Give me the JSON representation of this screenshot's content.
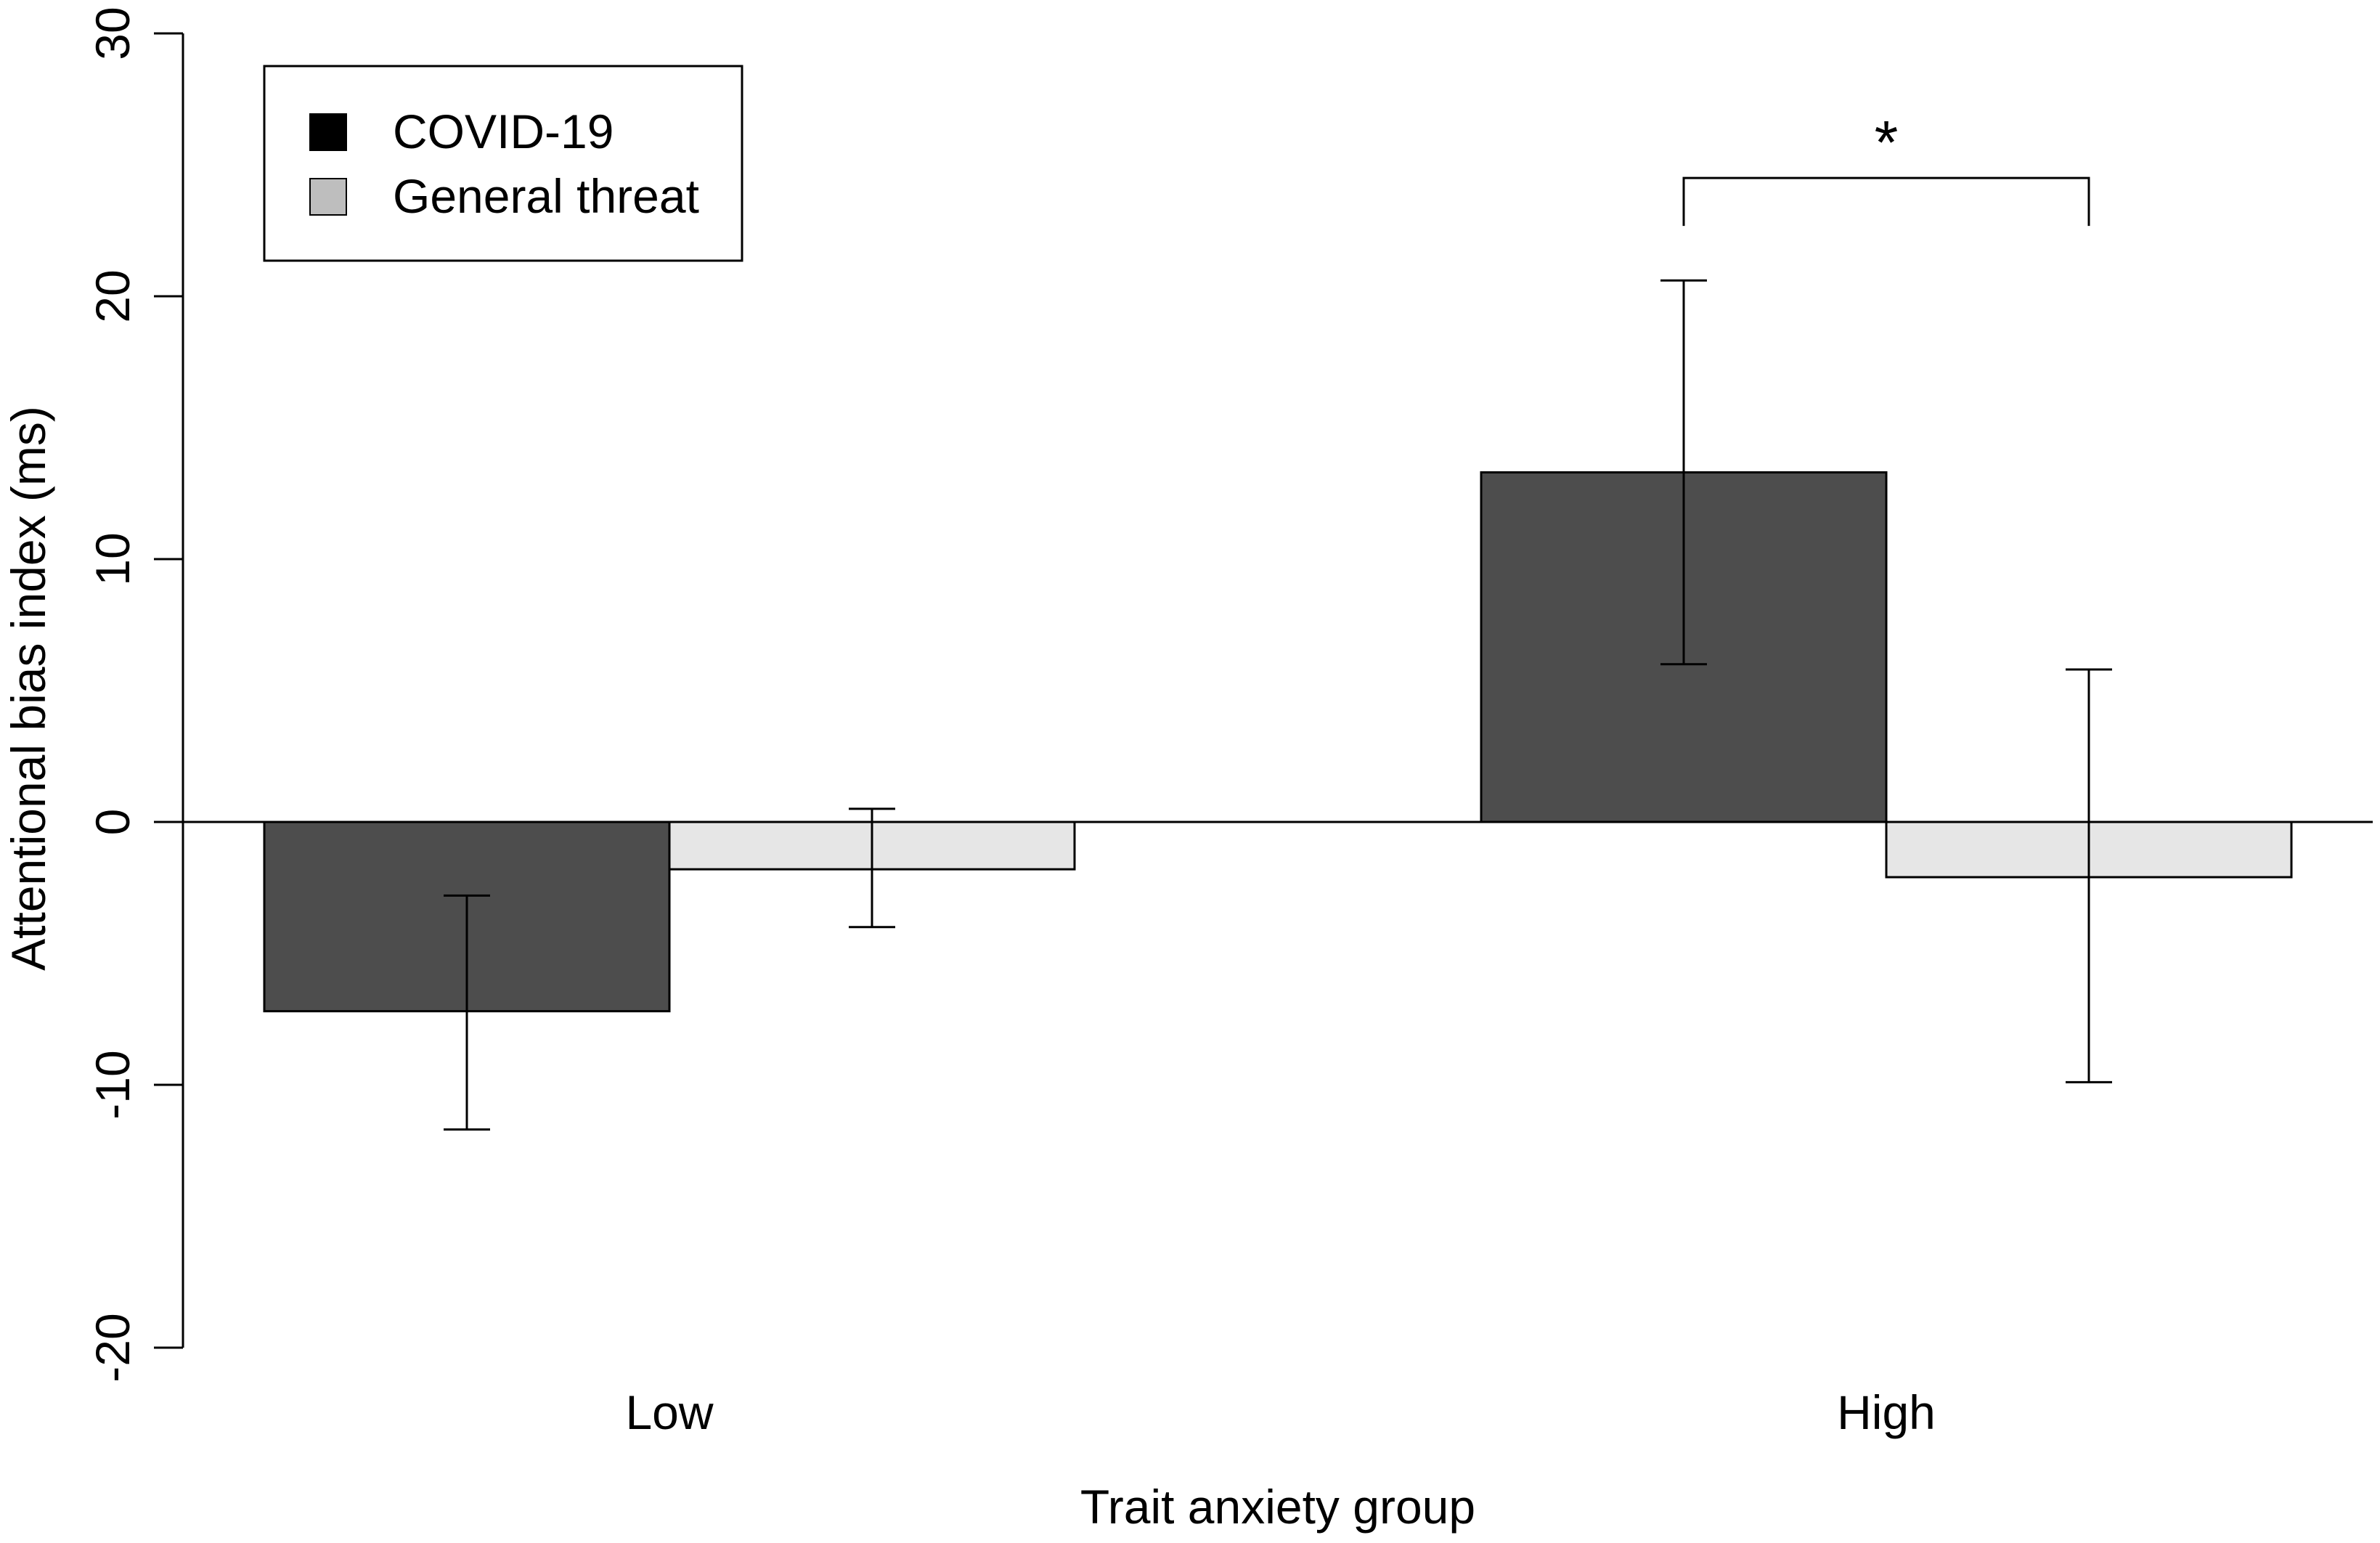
{
  "chart_data": {
    "type": "bar",
    "title": "",
    "xlabel": "Trait anxiety group",
    "ylabel": "Attentional bias index (ms)",
    "categories": [
      "Low",
      "High"
    ],
    "ylim": [
      -20,
      30
    ],
    "yticks": [
      -20,
      -10,
      0,
      10,
      20,
      30
    ],
    "ytick_labels": [
      "-20",
      "-10",
      "0",
      "10",
      "20",
      "30"
    ],
    "grid": false,
    "legend_position": "top-left",
    "series": [
      {
        "name": "COVID-19",
        "legend_label": "COVID-19",
        "values": [
          -7.2,
          13.3
        ],
        "error_low": [
          -11.7,
          6.0
        ],
        "error_high": [
          -2.8,
          20.6
        ],
        "color": "#4d4d4d",
        "legend_color": "#000000"
      },
      {
        "name": "General threat",
        "legend_label": "General threat",
        "values": [
          -1.8,
          -2.1
        ],
        "error_low": [
          -4.0,
          -9.9
        ],
        "error_high": [
          0.5,
          5.8
        ],
        "color": "#e6e6e6",
        "legend_color": "#bebebe"
      }
    ],
    "annotations": [
      {
        "label": "*",
        "category": "High",
        "between": [
          "COVID-19",
          "General threat"
        ],
        "bracket_y": 24.5
      }
    ]
  }
}
